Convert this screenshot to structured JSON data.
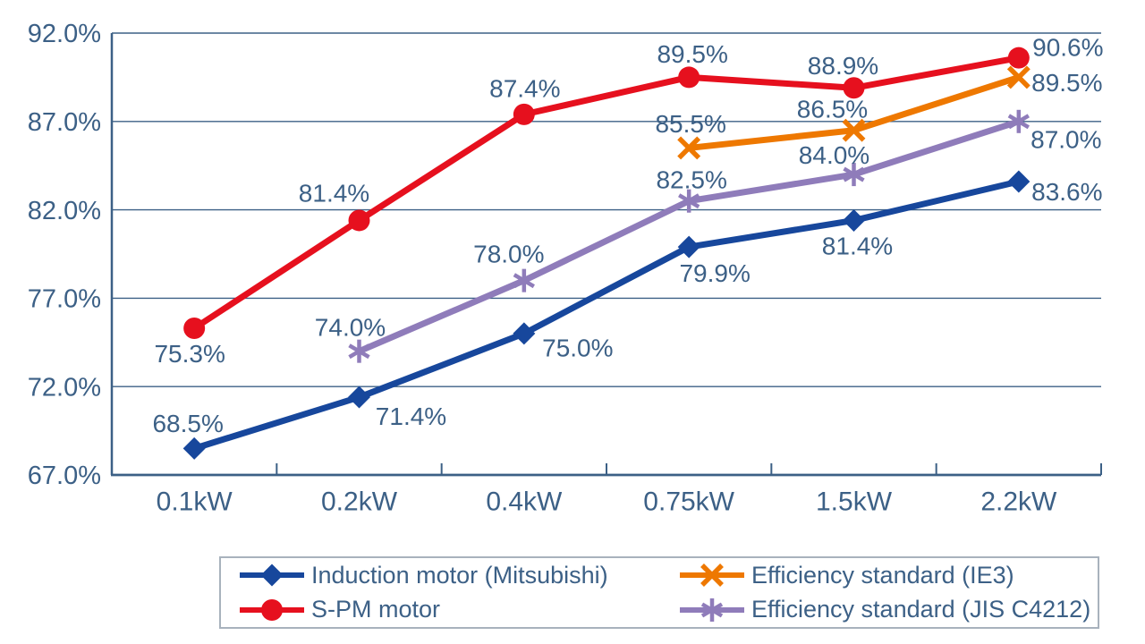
{
  "chart_data": {
    "type": "line",
    "categories": [
      "0.1kW",
      "0.2kW",
      "0.4kW",
      "0.75kW",
      "1.5kW",
      "2.2kW"
    ],
    "xlabel": "",
    "ylabel": "",
    "title": "",
    "y_axis": {
      "min": 67,
      "max": 92,
      "step": 5,
      "tick_labels": [
        "67.0%",
        "72.0%",
        "77.0%",
        "82.0%",
        "87.0%",
        "92.0%"
      ]
    },
    "grid": true,
    "legend_position": "bottom",
    "axis_color": "#3c6086",
    "grid_color": "#3c6086",
    "text_color": "#3c6086",
    "series": [
      {
        "name": "Induction motor (Mitsubishi)",
        "color": "#17479c",
        "marker": "diamond",
        "x_indices": [
          0,
          1,
          2,
          3,
          4,
          5
        ],
        "values": [
          68.5,
          71.4,
          75.0,
          79.9,
          81.4,
          83.6
        ],
        "labels": [
          "68.5%",
          "71.4%",
          "75.0%",
          "79.9%",
          "81.4%",
          "83.6%"
        ],
        "label_offsets": [
          [
            -7,
            -28
          ],
          [
            58,
            21
          ],
          [
            60,
            16
          ],
          [
            29,
            29
          ],
          [
            4,
            28
          ],
          [
            54,
            11
          ]
        ]
      },
      {
        "name": "S-PM motor",
        "color": "#e6101e",
        "marker": "circle",
        "x_indices": [
          0,
          1,
          2,
          3,
          4,
          5
        ],
        "values": [
          75.3,
          81.4,
          87.4,
          89.5,
          88.9,
          90.6
        ],
        "labels": [
          "75.3%",
          "81.4%",
          "87.4%",
          "89.5%",
          "88.9%",
          "90.6%"
        ],
        "label_offsets": [
          [
            -5,
            28
          ],
          [
            -28,
            -31
          ],
          [
            1,
            -29
          ],
          [
            4,
            -26
          ],
          [
            -12,
            -25
          ],
          [
            55,
            -12
          ]
        ]
      },
      {
        "name": "Efficiency standard (IE3)",
        "color": "#ee7800",
        "marker": "x",
        "x_indices": [
          3,
          4,
          5
        ],
        "values": [
          85.5,
          86.5,
          89.5
        ],
        "labels": [
          "85.5%",
          "86.5%",
          "89.5%"
        ],
        "label_offsets": [
          [
            2,
            -27
          ],
          [
            -24,
            -24
          ],
          [
            54,
            6
          ]
        ]
      },
      {
        "name": "Efficiency standard (JIS C4212)",
        "color": "#8f7cba",
        "marker": "asterisk",
        "x_indices": [
          1,
          2,
          3,
          4,
          5
        ],
        "values": [
          74.0,
          78.0,
          82.5,
          84.0,
          87.0
        ],
        "labels": [
          "74.0%",
          "78.0%",
          "82.5%",
          "84.0%",
          "87.0%"
        ],
        "label_offsets": [
          [
            -10,
            -27
          ],
          [
            -17,
            -30
          ],
          [
            3,
            -24
          ],
          [
            -22,
            -22
          ],
          [
            53,
            20
          ]
        ]
      }
    ],
    "legend": {
      "border_color": "#a8b2bd",
      "entries_order_row_major": [
        "Induction motor (Mitsubishi)",
        "Efficiency standard (IE3)",
        "S-PM motor",
        "Efficiency standard (JIS C4212)"
      ]
    }
  }
}
